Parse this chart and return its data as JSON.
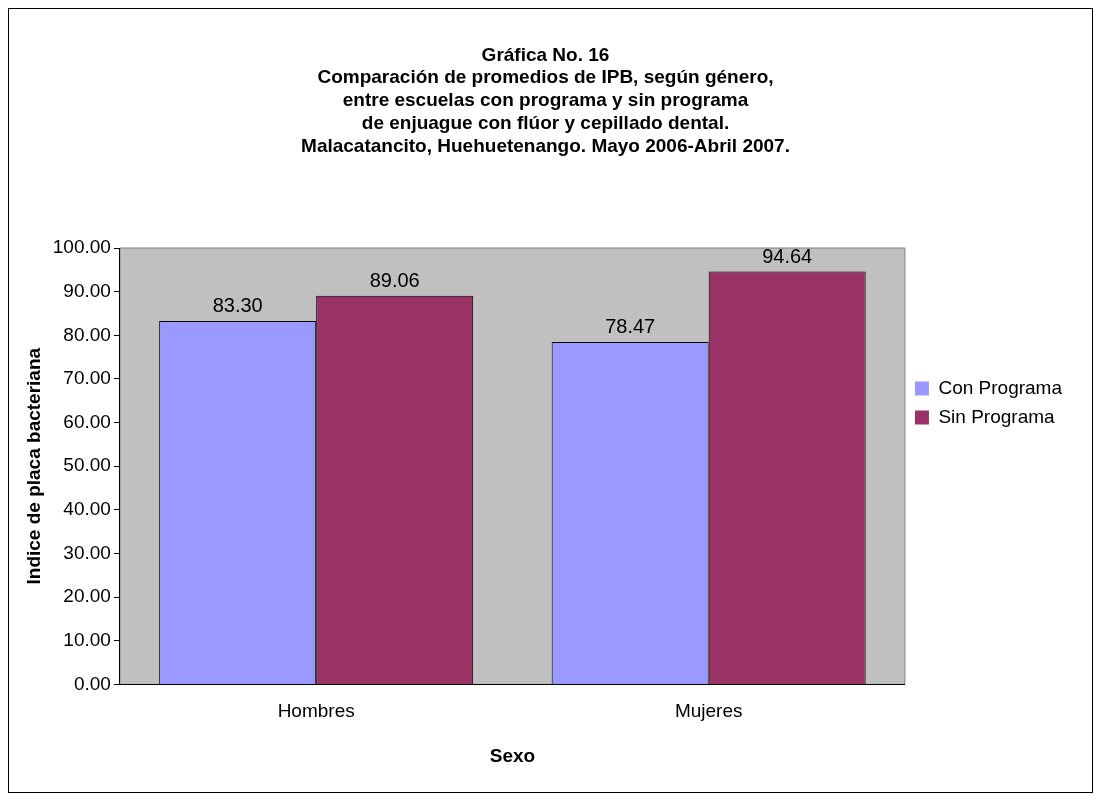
{
  "chart_data": {
    "type": "bar",
    "title": "Gráfica No. 16\nComparación de promedios de IPB, según género,\nentre escuelas con programa y sin programa\nde enjuague con flúor y cepillado dental.\nMalacatancito, Huehuetenango. Mayo 2006-Abril 2007.",
    "xlabel": "Sexo",
    "ylabel": "Indice de placa bacteriana",
    "categories": [
      "Hombres",
      "Mujeres"
    ],
    "series": [
      {
        "name": "Con Programa",
        "color": "#9999ff",
        "values": [
          83.3,
          78.47
        ],
        "value_labels": [
          "83.30",
          "78.47"
        ]
      },
      {
        "name": "Sin Programa",
        "color": "#993366",
        "values": [
          89.06,
          94.64
        ],
        "value_labels": [
          "89.06",
          "94.64"
        ]
      }
    ],
    "ylim": [
      0,
      100
    ],
    "yticks": [
      {
        "value": 0,
        "label": "0.00"
      },
      {
        "value": 10,
        "label": "10.00"
      },
      {
        "value": 20,
        "label": "20.00"
      },
      {
        "value": 30,
        "label": "30.00"
      },
      {
        "value": 40,
        "label": "40.00"
      },
      {
        "value": 50,
        "label": "50.00"
      },
      {
        "value": 60,
        "label": "60.00"
      },
      {
        "value": 70,
        "label": "70.00"
      },
      {
        "value": 80,
        "label": "80.00"
      },
      {
        "value": 90,
        "label": "90.00"
      },
      {
        "value": 100,
        "label": "100.00"
      }
    ],
    "grid": false,
    "legend": "right"
  }
}
